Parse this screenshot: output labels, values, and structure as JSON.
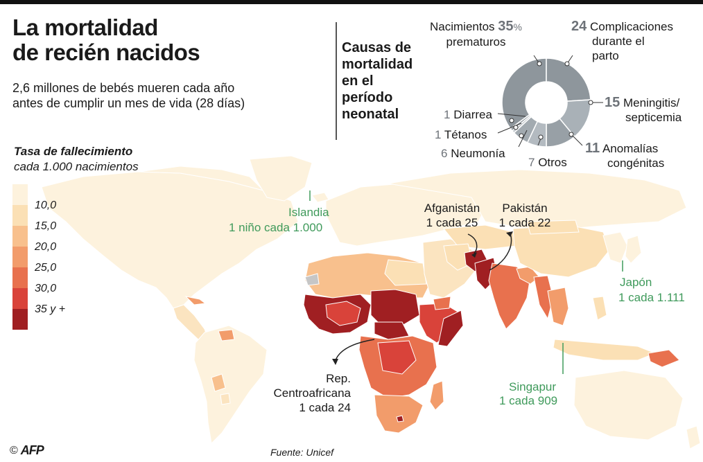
{
  "header": {
    "title_line1": "La mortalidad",
    "title_line2": "de recién nacidos",
    "subtitle_line1": "2,6 millones de bebés mueren cada año",
    "subtitle_line2": "antes de cumplir un mes de vida (28 días)"
  },
  "legend": {
    "title": "Tasa de fallecimiento",
    "subtitle": "cada 1.000 nacimientos",
    "items": [
      {
        "label": "",
        "color": "#fdf2dd"
      },
      {
        "label": "10,0",
        "color": "#fbe0b5"
      },
      {
        "label": "15,0",
        "color": "#f8c08d"
      },
      {
        "label": "20,0",
        "color": "#f29c6b"
      },
      {
        "label": "25,0",
        "color": "#e8714e"
      },
      {
        "label": "30,0",
        "color": "#d9433a"
      },
      {
        "label": "35 y +",
        "color": "#a01f22"
      }
    ]
  },
  "causes": {
    "title_lines": [
      "Causas de",
      "mortalidad",
      "en el",
      "período",
      "neonatal"
    ],
    "ring_colors": [
      "#8e969c",
      "#a9b1b7",
      "#98a0a6",
      "#b3bac0",
      "#a2aab0",
      "#c0c6cb"
    ],
    "items": [
      {
        "value": "35",
        "suffix": "%",
        "line1": "Nacimientos",
        "line2": "prematuros"
      },
      {
        "value": "24",
        "line1": "Complicaciones",
        "line2": "durante el",
        "line3": "parto"
      },
      {
        "value": "15",
        "line1": "Meningitis/",
        "line2": "septicemia"
      },
      {
        "value": "11",
        "line1": "Anomalías",
        "line2": "congénitas"
      },
      {
        "value": "7",
        "line1": "Otros"
      },
      {
        "value": "6",
        "line1": "Neumonía"
      },
      {
        "value": "1",
        "line1": "Tétanos"
      },
      {
        "value": "1",
        "line1": "Diarrea"
      }
    ]
  },
  "callouts": {
    "islandia": {
      "name": "Islandia",
      "rate": "1 niño cada 1.000"
    },
    "afganistan": {
      "name": "Afganistán",
      "rate": "1 cada 25"
    },
    "pakistan": {
      "name": "Pakistán",
      "rate": "1 cada 22"
    },
    "japon": {
      "name": "Japón",
      "rate": "1 cada 1.111"
    },
    "rca": {
      "name1": "Rep.",
      "name2": "Centroafricana",
      "rate": "1 cada 24"
    },
    "singapur": {
      "name": "Singapur",
      "rate": "1 cada 909"
    }
  },
  "footer": {
    "source": "Fuente: Unicef",
    "copyright": "©",
    "agency": "AFP"
  },
  "map_colors": {
    "low": "#fdf2dd",
    "land_light": "#fbe4c0",
    "mid": "#f29c6b",
    "high": "#e8714e",
    "dark": "#a01f22",
    "gray": "#c6c6c6"
  }
}
